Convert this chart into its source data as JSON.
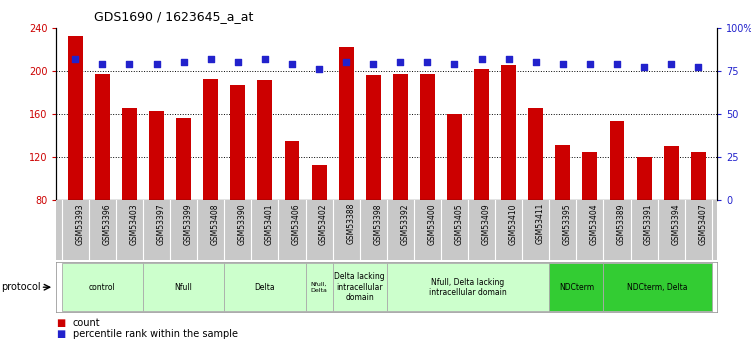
{
  "title": "GDS1690 / 1623645_a_at",
  "samples": [
    "GSM53393",
    "GSM53396",
    "GSM53403",
    "GSM53397",
    "GSM53399",
    "GSM53408",
    "GSM53390",
    "GSM53401",
    "GSM53406",
    "GSM53402",
    "GSM53388",
    "GSM53398",
    "GSM53392",
    "GSM53400",
    "GSM53405",
    "GSM53409",
    "GSM53410",
    "GSM53411",
    "GSM53395",
    "GSM53404",
    "GSM53389",
    "GSM53391",
    "GSM53394",
    "GSM53407"
  ],
  "counts": [
    232,
    197,
    165,
    163,
    156,
    192,
    187,
    191,
    135,
    113,
    222,
    196,
    197,
    197,
    160,
    202,
    205,
    165,
    131,
    125,
    153,
    120,
    130,
    125
  ],
  "percentiles": [
    82,
    79,
    79,
    79,
    80,
    82,
    80,
    82,
    79,
    76,
    80,
    79,
    80,
    80,
    79,
    82,
    82,
    80,
    79,
    79,
    79,
    77,
    79,
    77
  ],
  "bar_color": "#cc0000",
  "dot_color": "#2222cc",
  "ylim_left": [
    80,
    240
  ],
  "ylim_right": [
    0,
    100
  ],
  "yticks_left": [
    80,
    120,
    160,
    200,
    240
  ],
  "yticks_right": [
    0,
    25,
    50,
    75,
    100
  ],
  "ytick_labels_left": [
    "80",
    "120",
    "160",
    "200",
    "240"
  ],
  "ytick_labels_right": [
    "0",
    "25",
    "50",
    "75",
    "100%"
  ],
  "groups": [
    {
      "label": "control",
      "start": 0,
      "end": 3,
      "color": "#ccffcc"
    },
    {
      "label": "Nfull",
      "start": 3,
      "end": 6,
      "color": "#ccffcc"
    },
    {
      "label": "Delta",
      "start": 6,
      "end": 9,
      "color": "#ccffcc"
    },
    {
      "label": "Nfull,\nDelta",
      "start": 9,
      "end": 10,
      "color": "#ccffcc"
    },
    {
      "label": "Delta lacking\nintracellular\ndomain",
      "start": 10,
      "end": 12,
      "color": "#ccffcc"
    },
    {
      "label": "Nfull, Delta lacking\nintracellular domain",
      "start": 12,
      "end": 18,
      "color": "#ccffcc"
    },
    {
      "label": "NDCterm",
      "start": 18,
      "end": 20,
      "color": "#33cc33"
    },
    {
      "label": "NDCterm, Delta",
      "start": 20,
      "end": 24,
      "color": "#33cc33"
    }
  ],
  "protocol_label": "protocol",
  "legend_count_label": "count",
  "legend_percentile_label": "percentile rank within the sample",
  "tick_color_left": "#cc0000",
  "tick_color_right": "#2222cc",
  "gridline_color": "#000000",
  "gridline_style": ":",
  "gridline_values": [
    120,
    160,
    200
  ],
  "col_bg_color": "#c8c8c8",
  "col_sep_color": "#ffffff",
  "group_border_color": "#aaaaaa",
  "bar_width": 0.55
}
